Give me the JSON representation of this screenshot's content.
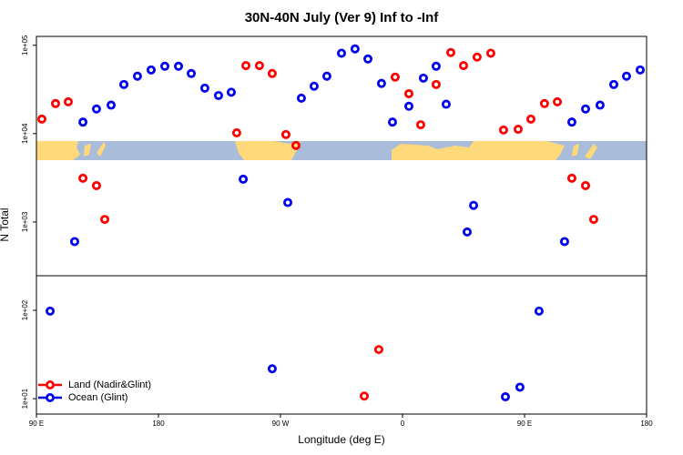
{
  "chart_data": {
    "type": "scatter",
    "title": "30N-40N July (Ver 9)   Inf to -Inf",
    "xlabel": "Longitude (deg E)",
    "ylabel": "N Total",
    "log_y": true,
    "legend": "bottom left",
    "xlim": [
      90,
      540
    ],
    "xticks": [
      {
        "value": 90,
        "label": "90 E"
      },
      {
        "value": 180,
        "label": "180"
      },
      {
        "value": 270,
        "label": "90 W"
      },
      {
        "value": 360,
        "label": "0"
      },
      {
        "value": 450,
        "label": "90 E"
      },
      {
        "value": 540,
        "label": "180"
      }
    ],
    "ylim": [
      6.7,
      126000
    ],
    "yticks": [
      {
        "value": 10,
        "label": "1e+01"
      },
      {
        "value": 100,
        "label": "1e+02"
      },
      {
        "value": 1000,
        "label": "1e+03"
      },
      {
        "value": 10000,
        "label": "1e+04"
      },
      {
        "value": 100000,
        "label": "1e+05"
      }
    ],
    "series": [
      {
        "name": "Land (Nadir&Glint)",
        "color": "#ff0000",
        "x": [
          94,
          104.1,
          113.5,
          124.3,
          134.3,
          140.4,
          237.7,
          244.5,
          254.5,
          263.9,
          274,
          281.4,
          331.8,
          342.5,
          354.6,
          364.7,
          373.4,
          384.8,
          395.6,
          405,
          415,
          425.1,
          434.5,
          445.3,
          454.7,
          464.7,
          474.2,
          484.9,
          495,
          501
        ],
        "values": [
          14600,
          21900,
          22900,
          3130,
          2580,
          1070,
          10200,
          58900,
          58900,
          47900,
          9770,
          7350,
          10.7,
          36,
          43600,
          28300,
          12600,
          36000,
          82700,
          58900,
          73500,
          81300,
          11000,
          11200,
          14600,
          21900,
          22900,
          3130,
          2580,
          1070
        ]
      },
      {
        "name": "Ocean (Glint)",
        "color": "#0000ee",
        "x": [
          100.1,
          118.2,
          124.3,
          134.3,
          145.1,
          154.5,
          164.5,
          174.6,
          184.7,
          194.8,
          204.2,
          214.2,
          224.3,
          233.7,
          242.5,
          263.9,
          275.4,
          285.4,
          294.8,
          304.2,
          315,
          325,
          334.5,
          344.5,
          352.6,
          364.7,
          375.4,
          384.8,
          392.2,
          407.7,
          412.4,
          435.9,
          446.6,
          460.7,
          479.5,
          484.9,
          495,
          505.7,
          515.8,
          525.2,
          535.3
        ],
        "values": [
          98,
          600,
          13500,
          19000,
          21000,
          36000,
          44700,
          52600,
          57900,
          57900,
          47900,
          32700,
          27000,
          29400,
          3050,
          21.8,
          1660,
          25200,
          34400,
          44700,
          81300,
          91000,
          70000,
          37000,
          13500,
          20400,
          42500,
          57900,
          21500,
          771,
          1540,
          10.5,
          13.5,
          98,
          600,
          13500,
          19000,
          21000,
          36000,
          44700,
          52600
        ]
      }
    ]
  }
}
